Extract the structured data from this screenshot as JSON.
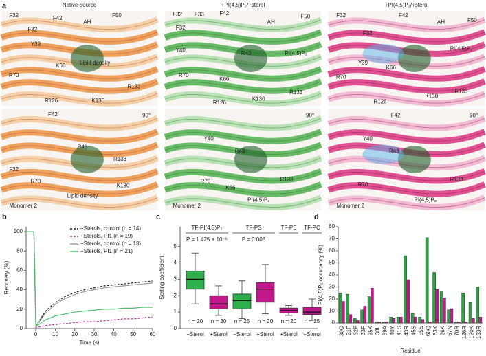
{
  "panel_a": {
    "label": "a",
    "columns": [
      "Native-source",
      "+PI(4,5)P₂/−sterol",
      "+PI(4,5)P₂/+sterol"
    ],
    "images": [
      {
        "labels": [
          "F32",
          "F32",
          "F42",
          "AH",
          "F50",
          "Y39",
          "Lipid density",
          "R70",
          "K66",
          "R126",
          "K130",
          "R133"
        ]
      },
      {
        "labels": [
          "F32",
          "F33",
          "F42",
          "AH",
          "F50",
          "F32",
          "Y40",
          "R43",
          "PI(4,5)P₂",
          "R70",
          "K66",
          "R126",
          "K130",
          "R133"
        ]
      },
      {
        "labels": [
          "F32",
          "F42",
          "AH",
          "F50",
          "F32",
          "Y39",
          "PI(4,5)P₂",
          "R70",
          "K66",
          "R126",
          "K130",
          "R133"
        ]
      },
      {
        "labels": [
          "F42",
          "90°",
          "R43",
          "F32",
          "R133",
          "R70",
          "K130",
          "Lipid density",
          "Monomer 2"
        ]
      },
      {
        "labels": [
          "90°",
          "Y40",
          "R43",
          "R70",
          "K66",
          "R133",
          "PI(4,5)P₂",
          "Monomer 2"
        ]
      },
      {
        "labels": [
          "90°",
          "F42",
          "Y40",
          "R43",
          "R70",
          "R133",
          "PI(4,5)P₂",
          "Monomer 2"
        ]
      }
    ]
  },
  "chart_data": [
    {
      "panel": "b",
      "type": "line",
      "xlabel": "Time (s)",
      "ylabel": "Recovery (%)",
      "legend": "upper-right",
      "x": [
        -5,
        -4,
        -3,
        -2,
        -1,
        0,
        5,
        10,
        15,
        20,
        25,
        30,
        35,
        40,
        45,
        50,
        55,
        60
      ],
      "xlim": [
        -5,
        60
      ],
      "xticks": [
        0,
        10,
        20,
        30,
        40,
        50,
        60
      ],
      "ylim": [
        0,
        105
      ],
      "yticks": [
        0,
        20,
        40,
        60,
        80,
        100
      ],
      "series": [
        {
          "name": "+Sterols, control (n = 14)",
          "color": "#222222",
          "dashed": true,
          "values": [
            100,
            100,
            100,
            100,
            100,
            2,
            18,
            27,
            33,
            37,
            40,
            42,
            44,
            45,
            46,
            47,
            48,
            49
          ]
        },
        {
          "name": "+Sterols, PI1 (n = 19)",
          "color": "#b5338a",
          "dashed": true,
          "values": [
            100,
            100,
            100,
            100,
            100,
            1,
            3,
            4,
            5,
            6,
            7,
            7,
            8,
            9,
            10,
            10,
            11,
            12
          ]
        },
        {
          "name": "−Sterols, control (n = 13)",
          "color": "#9a9a9a",
          "dashed": false,
          "values": [
            100,
            100,
            100,
            100,
            100,
            2,
            16,
            25,
            31,
            35,
            38,
            40,
            42,
            43,
            44,
            45,
            46,
            47
          ]
        },
        {
          "name": "−Sterols, PI1 (n = 21)",
          "color": "#4bbf6b",
          "dashed": false,
          "values": [
            100,
            100,
            100,
            100,
            100,
            2,
            9,
            13,
            15,
            17,
            18,
            19,
            20,
            20,
            21,
            21,
            22,
            22
          ]
        }
      ]
    },
    {
      "panel": "c",
      "type": "box",
      "ylabel": "Sorting coefficient",
      "ylim": [
        0,
        6.2
      ],
      "yticks": [
        0,
        1,
        2,
        3,
        4,
        5
      ],
      "groups": [
        {
          "name": "TF-PI(4,5)P₂",
          "annotation": "P = 1.425 × 10⁻⁵",
          "boxes": [
            {
              "category": "−Sterol",
              "n": "n = 20",
              "color": "#2db04b",
              "stats": {
                "min": 1.5,
                "q1": 2.4,
                "median": 3.0,
                "q3": 3.5,
                "max": 4.6
              }
            },
            {
              "category": "+Sterol",
              "n": "n = 20",
              "color": "#c2188b",
              "stats": {
                "min": 0.8,
                "q1": 1.2,
                "median": 1.5,
                "q3": 2.0,
                "max": 2.6
              }
            }
          ]
        },
        {
          "name": "TF-PS",
          "annotation": "P = 0.006",
          "boxes": [
            {
              "category": "−Sterol",
              "n": "n = 25",
              "color": "#2db04b",
              "stats": {
                "min": 0.6,
                "q1": 1.2,
                "median": 1.7,
                "q3": 2.1,
                "max": 2.9
              }
            },
            {
              "category": "+Sterol",
              "n": "n = 20",
              "color": "#c2188b",
              "stats": {
                "min": 0.9,
                "q1": 1.6,
                "median": 2.4,
                "q3": 2.8,
                "max": 3.9
              }
            }
          ]
        },
        {
          "name": "TF-PE",
          "boxes": [
            {
              "category": "+Sterol",
              "n": "n = 20",
              "color": "#c2188b",
              "stats": {
                "min": 0.8,
                "q1": 0.95,
                "median": 1.1,
                "q3": 1.25,
                "max": 1.4
              }
            }
          ]
        },
        {
          "name": "TF-PC",
          "boxes": [
            {
              "category": "+Sterol",
              "n": "n = 25",
              "color": "#c2188b",
              "stats": {
                "min": 0.5,
                "q1": 0.85,
                "median": 1.0,
                "q3": 1.3,
                "max": 1.8
              }
            }
          ]
        }
      ]
    },
    {
      "panel": "d",
      "type": "bar",
      "ylabel": "PI(4,5)P₂ occupancy (%)",
      "xlabel": "Residue",
      "ylim": [
        0,
        80
      ],
      "yticks": [
        0,
        10,
        20,
        30,
        40,
        50,
        60,
        70,
        80
      ],
      "categories": [
        "30Q",
        "31F",
        "32F",
        "33F",
        "35K",
        "38L",
        "39A",
        "40Y",
        "41S",
        "43R",
        "45S",
        "55S",
        "60Q",
        "63K",
        "66K",
        "67N",
        "70R",
        "126R",
        "130K",
        "133R"
      ],
      "series": [
        {
          "color": "#2ea043",
          "values": [
            25,
            24,
            4,
            11,
            22,
            1,
            1,
            5,
            5,
            56,
            8,
            5,
            71,
            42,
            26,
            11,
            1,
            25,
            17,
            30
          ]
        },
        {
          "color": "#c2188b",
          "values": [
            18,
            7,
            2,
            14,
            29,
            1,
            1,
            4,
            5,
            36,
            5,
            3,
            1,
            28,
            21,
            12,
            1,
            1,
            4,
            5
          ]
        }
      ]
    }
  ]
}
